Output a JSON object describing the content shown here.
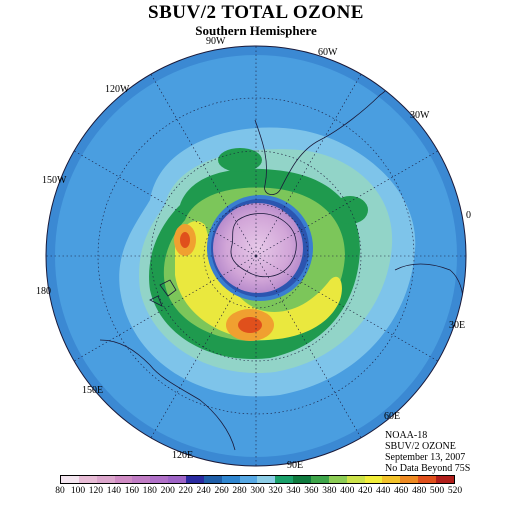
{
  "title": "SBUV/2 TOTAL OZONE",
  "subtitle": "Southern Hemisphere",
  "longitude_labels": [
    {
      "text": "90W"
    },
    {
      "text": "60W"
    },
    {
      "text": "30W"
    },
    {
      "text": "0"
    },
    {
      "text": "30E"
    },
    {
      "text": "60E"
    },
    {
      "text": "90E"
    },
    {
      "text": "120E"
    },
    {
      "text": "150E"
    },
    {
      "text": "180"
    },
    {
      "text": "150W"
    },
    {
      "text": "120W"
    }
  ],
  "info": {
    "line1": "NOAA-18",
    "line2": "SBUV/2 OZONE",
    "line3": "September 13, 2007",
    "line4": "No Data Beyond 75S"
  },
  "colorbar": {
    "ticks": [
      "80",
      "100",
      "120",
      "140",
      "160",
      "180",
      "200",
      "220",
      "240",
      "260",
      "280",
      "300",
      "320",
      "340",
      "360",
      "380",
      "400",
      "420",
      "440",
      "460",
      "480",
      "500",
      "520"
    ],
    "colors": [
      "#f4e6f0",
      "#e8bcd6",
      "#dca6cc",
      "#d08cc4",
      "#c07cc4",
      "#b070c8",
      "#9e64c6",
      "#2a2aa0",
      "#1f5ea8",
      "#2f86d0",
      "#56a8e4",
      "#8ccde6",
      "#1aa06a",
      "#0f7a3e",
      "#3ea54a",
      "#8ccc55",
      "#cce24a",
      "#f2ee3a",
      "#f2c22a",
      "#ee8a22",
      "#e0501c",
      "#b01e1a"
    ]
  },
  "map": {
    "ocean_color": "#3a92d8",
    "hole_color": "#c8a6d6"
  }
}
